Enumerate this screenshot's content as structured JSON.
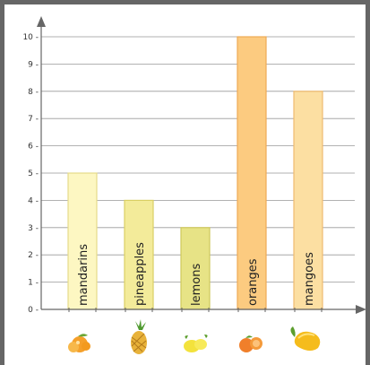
{
  "chart_data": {
    "type": "bar",
    "title": "",
    "xlabel": "",
    "ylabel": "",
    "categories": [
      "mandarins",
      "pineapples",
      "lemons",
      "oranges",
      "mangoes"
    ],
    "values": [
      5,
      4,
      3,
      10,
      8
    ],
    "ylim": [
      0,
      10
    ],
    "yticks": [
      0,
      1,
      2,
      3,
      4,
      5,
      6,
      7,
      8,
      9,
      10
    ],
    "grid": true,
    "bar_colors": [
      "#fdf7c2",
      "#f3eb9a",
      "#e7e386",
      "#fccb80",
      "#fcdfa2"
    ],
    "bar_strokes": [
      "#e6dc8a",
      "#d9cf64",
      "#cfc95a",
      "#eeaa55",
      "#eebb70"
    ],
    "fruit_icons": [
      "mandarin-icon",
      "pineapple-icon",
      "lemon-icon",
      "orange-icon",
      "mango-icon"
    ]
  }
}
